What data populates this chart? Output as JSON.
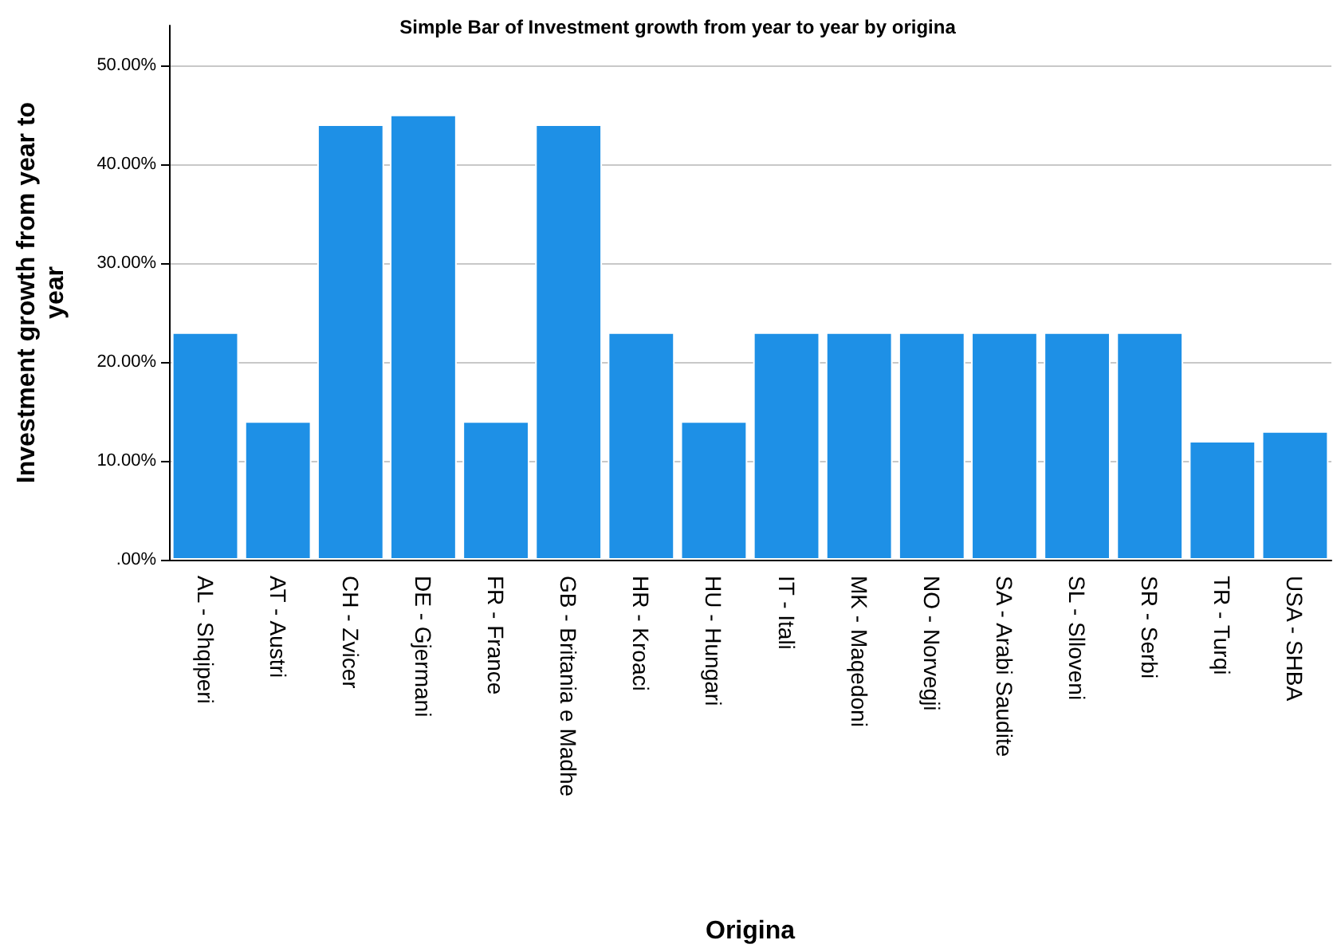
{
  "chart_data": {
    "type": "bar",
    "title": "Simple Bar of Investment growth from year to year by origina",
    "xlabel": "Origina",
    "ylabel": "Investment growth from year to year",
    "categories": [
      "AL - Shqiperi",
      "AT - Austri",
      "CH - Zvicer",
      "DE - Gjermani",
      "FR - France",
      "GB - Britania e Madhe",
      "HR - Kroaci",
      "HU - Hungari",
      "IT - Itali",
      "MK - Maqedoni",
      "NO - Norvegji",
      "SA - Arabi Saudite",
      "SL - Slloveni",
      "SR - Serbi",
      "TR - Turqi",
      "USA - SHBA"
    ],
    "values": [
      23,
      14,
      44,
      45,
      14,
      44,
      23,
      14,
      23,
      23,
      23,
      23,
      23,
      23,
      12,
      13
    ],
    "color": "#1e90e6",
    "ylim": [
      0,
      54
    ],
    "yticks": [
      {
        "value": 0,
        "label": ".00%"
      },
      {
        "value": 10,
        "label": "10.00%"
      },
      {
        "value": 20,
        "label": "20.00%"
      },
      {
        "value": 30,
        "label": "30.00%"
      },
      {
        "value": 40,
        "label": "40.00%"
      },
      {
        "value": 50,
        "label": "50.00%"
      }
    ],
    "grid": "y"
  }
}
